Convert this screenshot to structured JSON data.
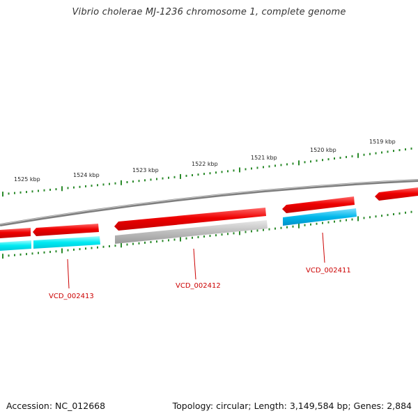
{
  "title": "Vibrio cholerae MJ-1236 chromosome 1, complete genome",
  "footer": {
    "accession": "Accession: NC_012668",
    "summary": "Topology: circular; Length: 3,149,584 bp; Genes: 2,884"
  },
  "colors": {
    "forward_strand": "#ee1111",
    "reverse_strand": "#00bfee",
    "reverse_strand_alt": "#00e8f0",
    "no_cog": "#b4b4b4",
    "backbone": "#888888",
    "ticks": "#2a8a2a",
    "label": "#cc0000"
  },
  "scale": {
    "unit": "kbp",
    "labels": [
      "1525 kbp",
      "1524 kbp",
      "1523 kbp",
      "1522 kbp",
      "1521 kbp",
      "1520 kbp",
      "1519 kbp"
    ]
  },
  "genes": [
    {
      "name": "VCD_002413"
    },
    {
      "name": "VCD_002412"
    },
    {
      "name": "VCD_002411"
    }
  ]
}
